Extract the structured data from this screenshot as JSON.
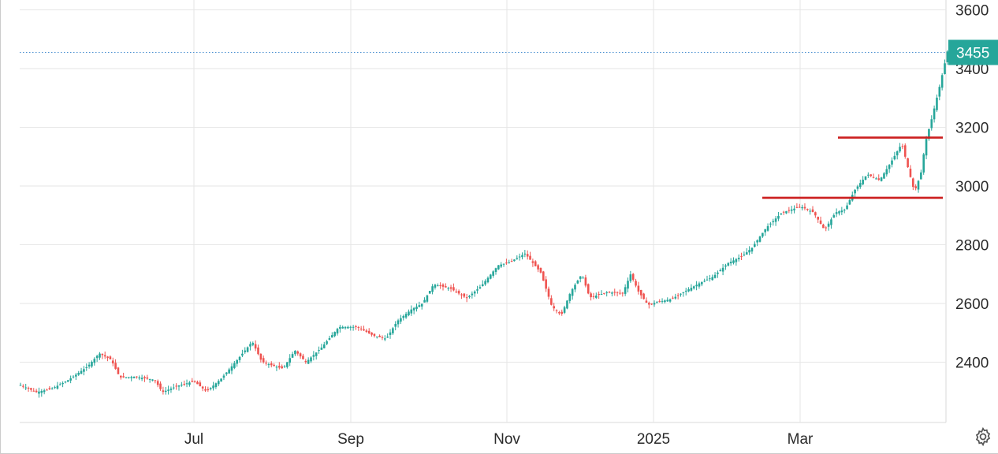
{
  "chart_data": {
    "type": "candlestick",
    "x_tick_labels": [
      "Jul",
      "Sep",
      "Nov",
      "2025",
      "Mar"
    ],
    "y_tick_labels": [
      "2400",
      "2600",
      "2800",
      "3000",
      "3200",
      "3400",
      "3600"
    ],
    "ylim": [
      2200,
      3620
    ],
    "grid": true,
    "axis_position": "right",
    "last_price": 3455,
    "last_price_label": "3455",
    "colors": {
      "up": "#26a69a",
      "down": "#ef5350",
      "level_line": "#cc1f1f",
      "price_tag": "#26a69a"
    },
    "trend": [
      [
        0,
        2322
      ],
      [
        20,
        2298
      ],
      [
        40,
        2310
      ],
      [
        60,
        2338
      ],
      [
        85,
        2385
      ],
      [
        100,
        2430
      ],
      [
        115,
        2408
      ],
      [
        126,
        2348
      ],
      [
        146,
        2350
      ],
      [
        170,
        2340
      ],
      [
        180,
        2298
      ],
      [
        200,
        2320
      ],
      [
        220,
        2335
      ],
      [
        236,
        2300
      ],
      [
        255,
        2345
      ],
      [
        275,
        2408
      ],
      [
        294,
        2470
      ],
      [
        306,
        2402
      ],
      [
        320,
        2388
      ],
      [
        333,
        2378
      ],
      [
        348,
        2440
      ],
      [
        362,
        2400
      ],
      [
        382,
        2450
      ],
      [
        404,
        2520
      ],
      [
        427,
        2520
      ],
      [
        448,
        2490
      ],
      [
        464,
        2480
      ],
      [
        478,
        2540
      ],
      [
        496,
        2580
      ],
      [
        510,
        2600
      ],
      [
        524,
        2665
      ],
      [
        546,
        2650
      ],
      [
        566,
        2618
      ],
      [
        584,
        2658
      ],
      [
        606,
        2730
      ],
      [
        620,
        2740
      ],
      [
        640,
        2770
      ],
      [
        660,
        2705
      ],
      [
        674,
        2590
      ],
      [
        686,
        2560
      ],
      [
        698,
        2640
      ],
      [
        712,
        2700
      ],
      [
        722,
        2620
      ],
      [
        744,
        2638
      ],
      [
        764,
        2635
      ],
      [
        774,
        2700
      ],
      [
        784,
        2640
      ],
      [
        796,
        2595
      ],
      [
        808,
        2605
      ],
      [
        826,
        2615
      ],
      [
        842,
        2640
      ],
      [
        862,
        2670
      ],
      [
        878,
        2690
      ],
      [
        898,
        2738
      ],
      [
        916,
        2762
      ],
      [
        928,
        2790
      ],
      [
        946,
        2858
      ],
      [
        966,
        2910
      ],
      [
        990,
        2930
      ],
      [
        1006,
        2910
      ],
      [
        1020,
        2850
      ],
      [
        1034,
        2910
      ],
      [
        1046,
        2920
      ],
      [
        1058,
        2985
      ],
      [
        1074,
        3040
      ],
      [
        1090,
        3020
      ],
      [
        1104,
        3080
      ],
      [
        1118,
        3145
      ],
      [
        1126,
        3060
      ],
      [
        1134,
        2980
      ],
      [
        1142,
        3040
      ],
      [
        1148,
        3150
      ],
      [
        1156,
        3230
      ],
      [
        1166,
        3340
      ],
      [
        1176,
        3460
      ]
    ],
    "level_lines": [
      {
        "value": 3165,
        "x_start": 1063,
        "x_end": 1196
      },
      {
        "value": 2960,
        "x_start": 967,
        "x_end": 1196
      }
    ]
  },
  "icons": {
    "settings": "gear-icon"
  }
}
